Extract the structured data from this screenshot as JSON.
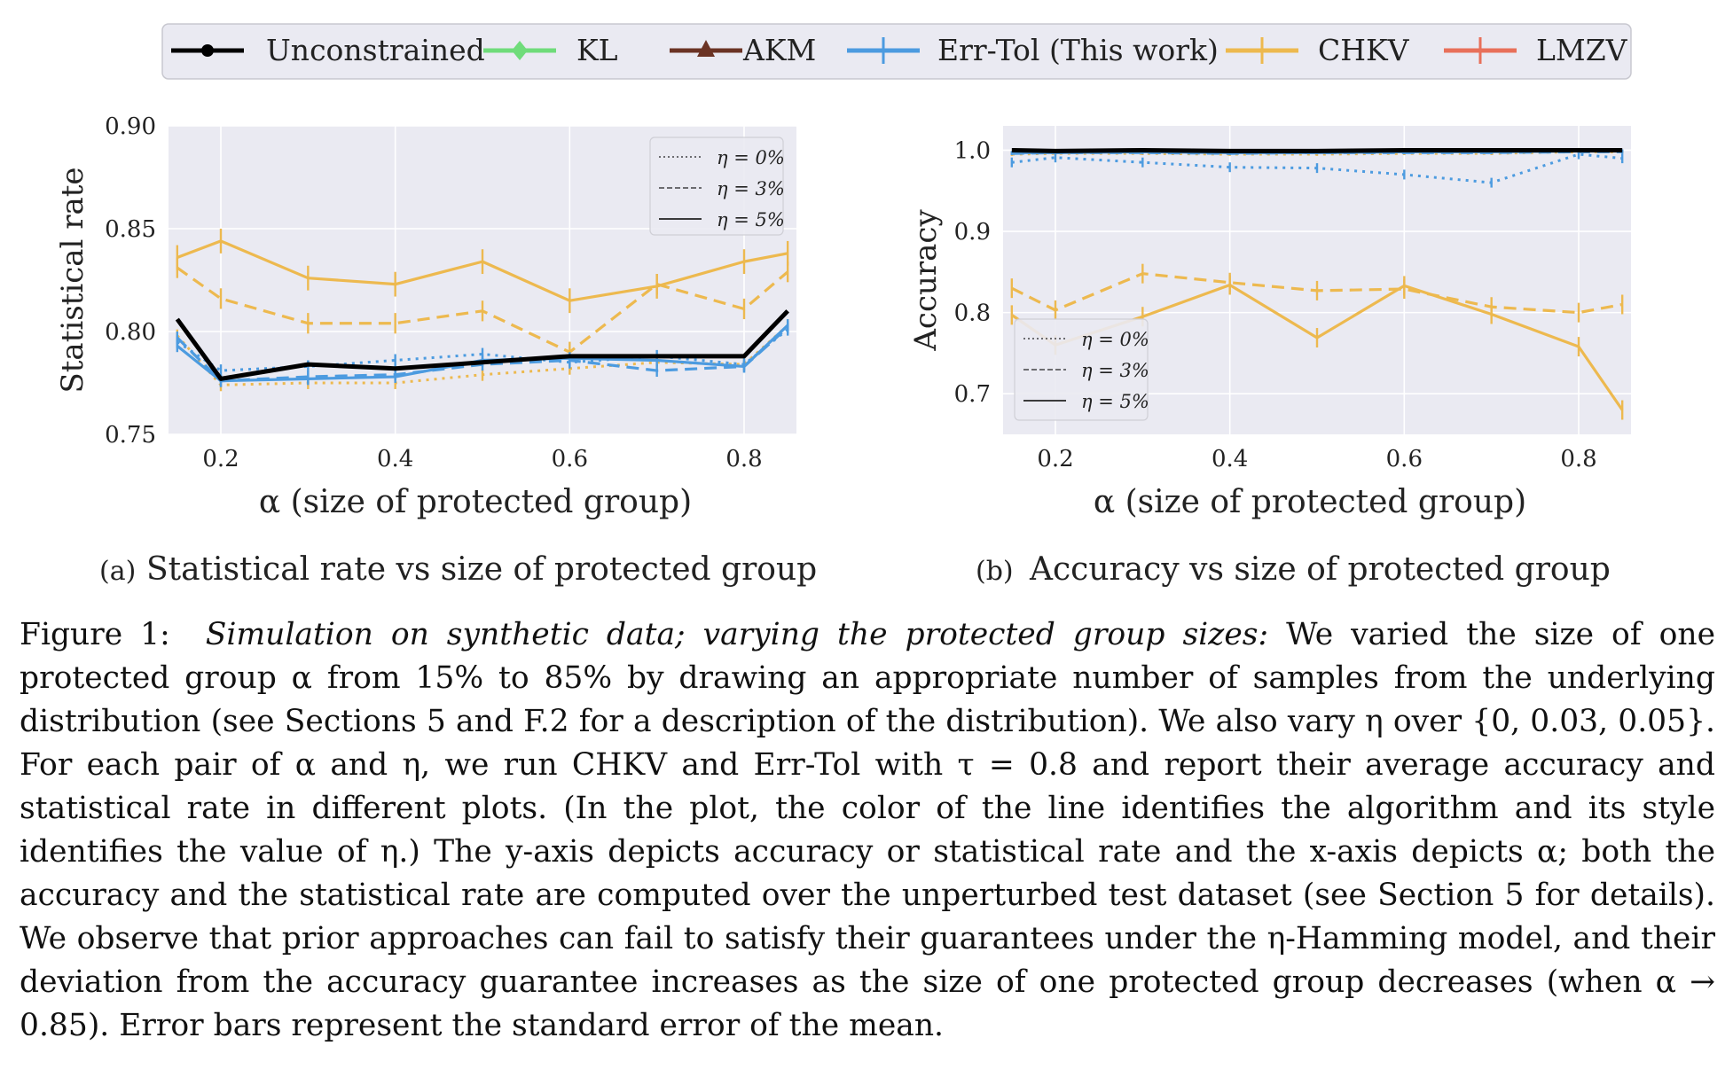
{
  "legend": [
    {
      "label": "Unconstrained",
      "color": "#000000",
      "marker": "dot"
    },
    {
      "label": "KL",
      "color": "#6fdc7a",
      "marker": "diamond"
    },
    {
      "label": "AKM",
      "color": "#6b3324",
      "marker": "triangle"
    },
    {
      "label": "Err-Tol (This work)",
      "color": "#4c9be0",
      "marker": "plus"
    },
    {
      "label": "CHKV",
      "color": "#edb94f",
      "marker": "plus"
    },
    {
      "label": "LMZV",
      "color": "#e8705a",
      "marker": "plus"
    }
  ],
  "eta_legend": [
    "η = 0%",
    "η = 3%",
    "η = 5%"
  ],
  "subcaptions": {
    "a": {
      "tag": "(a)",
      "text": "Statistical rate vs size of protected group"
    },
    "b": {
      "tag": "(b)",
      "text": "Accuracy vs size of protected group"
    }
  },
  "caption": {
    "label": "Figure 1:",
    "lead": "Simulation on synthetic data; varying the protected group sizes:",
    "body": "We varied the size of one protected group α from 15% to 85% by drawing an appropriate number of samples from the underlying distribution (see Sections 5 and F.2 for a description of the distribution). We also vary η over {0, 0.03, 0.05}. For each pair of α and η, we run CHKV and Err-Tol with τ = 0.8 and report their average accuracy and statistical rate in different plots. (In the plot, the color of the line identifies the algorithm and its style identifies the value of η.) The y-axis depicts accuracy or statistical rate and the x-axis depicts α; both the accuracy and the statistical rate are computed over the unperturbed test dataset (see Section 5 for details). We observe that prior approaches can fail to satisfy their guarantees under the η-Hamming model, and their deviation from the accuracy guarantee increases as the size of one protected group decreases (when α → 0.85). Error bars represent the standard error of the mean."
  },
  "chart_data": [
    {
      "type": "line",
      "xlabel": "α (size of protected group)",
      "ylabel": "Statistical rate",
      "xlim": [
        0.14,
        0.86
      ],
      "ylim": [
        0.75,
        0.9
      ],
      "xticks": [
        0.2,
        0.4,
        0.6,
        0.8
      ],
      "yticks": [
        0.75,
        0.8,
        0.85,
        0.9
      ],
      "ytick_labels": [
        "0.75",
        "0.80",
        "0.85",
        "0.90"
      ],
      "grid": true,
      "eta_legend_position": "top-right",
      "x": [
        0.15,
        0.2,
        0.3,
        0.4,
        0.5,
        0.6,
        0.7,
        0.8,
        0.85
      ],
      "series": [
        {
          "name": "CHKV",
          "eta": "η = 5%",
          "color": "#edb94f",
          "values": [
            0.836,
            0.844,
            0.826,
            0.823,
            0.834,
            0.815,
            0.822,
            0.834,
            0.838
          ],
          "err": 0.006
        },
        {
          "name": "CHKV",
          "eta": "η = 3%",
          "color": "#edb94f",
          "values": [
            0.831,
            0.816,
            0.804,
            0.804,
            0.81,
            0.79,
            0.823,
            0.811,
            0.829
          ],
          "err": 0.005
        },
        {
          "name": "CHKV",
          "eta": "η = 0%",
          "color": "#edb94f",
          "values": [
            0.798,
            0.774,
            0.775,
            0.775,
            0.779,
            0.782,
            0.785,
            0.784,
            0.803
          ],
          "err": 0.003
        },
        {
          "name": "Err-Tol (This work)",
          "eta": "η = 0%",
          "color": "#4c9be0",
          "values": [
            0.795,
            0.781,
            0.783,
            0.786,
            0.789,
            0.785,
            0.788,
            0.784,
            0.801
          ],
          "err": 0.003
        },
        {
          "name": "Err-Tol (This work)",
          "eta": "η = 3%",
          "color": "#4c9be0",
          "values": [
            0.797,
            0.776,
            0.778,
            0.779,
            0.784,
            0.786,
            0.781,
            0.783,
            0.802
          ],
          "err": 0.003
        },
        {
          "name": "Err-Tol (This work)",
          "eta": "η = 5%",
          "color": "#4c9be0",
          "values": [
            0.793,
            0.776,
            0.777,
            0.778,
            0.786,
            0.787,
            0.786,
            0.783,
            0.803
          ],
          "err": 0.003
        },
        {
          "name": "Unconstrained",
          "eta": "η = 5%",
          "color": "#000000",
          "values": [
            0.806,
            0.777,
            0.784,
            0.782,
            0.785,
            0.788,
            0.788,
            0.788,
            0.81
          ],
          "err": 0
        }
      ]
    },
    {
      "type": "line",
      "xlabel": "α (size of protected group)",
      "ylabel": "Accuracy",
      "xlim": [
        0.14,
        0.86
      ],
      "ylim": [
        0.65,
        1.03
      ],
      "xticks": [
        0.2,
        0.4,
        0.6,
        0.8
      ],
      "yticks": [
        0.7,
        0.8,
        0.9,
        1.0
      ],
      "ytick_labels": [
        "0.7",
        "0.8",
        "0.9",
        "1.0"
      ],
      "grid": true,
      "eta_legend_position": "bottom-left",
      "x": [
        0.15,
        0.2,
        0.3,
        0.4,
        0.5,
        0.6,
        0.7,
        0.8,
        0.85
      ],
      "series": [
        {
          "name": "CHKV",
          "eta": "η = 5%",
          "color": "#edb94f",
          "values": [
            0.797,
            0.76,
            0.795,
            0.834,
            0.769,
            0.833,
            0.798,
            0.758,
            0.68
          ],
          "err": 0.012
        },
        {
          "name": "CHKV",
          "eta": "η = 3%",
          "color": "#edb94f",
          "values": [
            0.83,
            0.803,
            0.848,
            0.837,
            0.827,
            0.829,
            0.807,
            0.8,
            0.81
          ],
          "err": 0.012
        },
        {
          "name": "CHKV",
          "eta": "η = 0%",
          "color": "#edb94f",
          "values": [
            0.995,
            0.996,
            0.996,
            0.995,
            0.995,
            0.996,
            0.996,
            0.998,
            0.998
          ],
          "err": 0.002
        },
        {
          "name": "Err-Tol (This work)",
          "eta": "η = 0%",
          "color": "#4c9be0",
          "values": [
            0.985,
            0.991,
            0.985,
            0.979,
            0.978,
            0.97,
            0.96,
            0.995,
            0.99
          ],
          "err": 0.006
        },
        {
          "name": "Err-Tol (This work)",
          "eta": "η = 3%",
          "color": "#4c9be0",
          "values": [
            0.996,
            0.997,
            0.997,
            0.996,
            0.997,
            0.997,
            0.997,
            0.998,
            0.998
          ],
          "err": 0.002
        },
        {
          "name": "Err-Tol (This work)",
          "eta": "η = 5%",
          "color": "#4c9be0",
          "values": [
            0.997,
            0.997,
            0.998,
            0.997,
            0.997,
            0.998,
            0.998,
            0.999,
            0.999
          ],
          "err": 0.002
        },
        {
          "name": "Unconstrained",
          "eta": "η = 5%",
          "color": "#000000",
          "values": [
            1.0,
            0.999,
            1.0,
            0.999,
            0.999,
            1.0,
            1.0,
            1.0,
            1.0
          ],
          "err": 0
        }
      ]
    }
  ]
}
